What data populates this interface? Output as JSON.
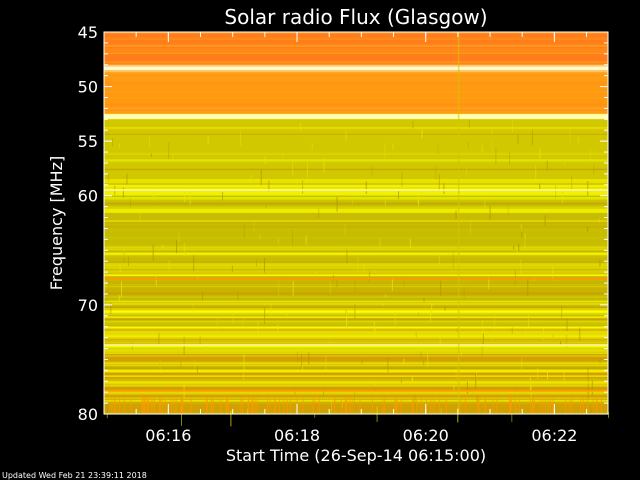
{
  "chart_data": {
    "type": "heatmap",
    "title": "Solar radio Flux (Glasgow)",
    "ylabel": "Frequency [MHz]",
    "xlabel": "Start Time (26-Sep-14 06:15:00)",
    "y_ticks": [
      45,
      50,
      55,
      60,
      70,
      80
    ],
    "y_tick_labels": [
      "45",
      "50",
      "55",
      "60",
      "70",
      "80"
    ],
    "ylim": [
      45,
      80
    ],
    "y_scale": "linear",
    "x_ticks": [
      "06:16",
      "06:18",
      "06:20",
      "06:22"
    ],
    "xlim": [
      "06:15:00",
      "06:22:50"
    ],
    "colormap": [
      "#c8a000",
      "#c8c800",
      "#e6e600",
      "#ffff00",
      "#ff9a00",
      "#ff7a1a",
      "#ffffa0",
      "#ffffff"
    ],
    "bands": [
      {
        "f_min": 45.0,
        "f_max": 48.0,
        "level": "high",
        "color": "#ff7d1a"
      },
      {
        "f_min": 48.0,
        "f_max": 48.7,
        "level": "saturated",
        "color": "#ffffb4"
      },
      {
        "f_min": 48.7,
        "f_max": 52.5,
        "level": "high",
        "color": "#ff9a10"
      },
      {
        "f_min": 52.5,
        "f_max": 53.0,
        "level": "saturated",
        "color": "#ffffa0"
      },
      {
        "f_min": 53.0,
        "f_max": 58.5,
        "level": "medium",
        "color": "#d2c800"
      },
      {
        "f_min": 58.5,
        "f_max": 60.0,
        "level": "medium-high",
        "color": "#f0f000"
      },
      {
        "f_min": 60.0,
        "f_max": 66.0,
        "level": "medium",
        "color": "#c8bc00"
      },
      {
        "f_min": 66.0,
        "f_max": 72.0,
        "level": "medium",
        "color": "#c8b400"
      },
      {
        "f_min": 72.0,
        "f_max": 74.5,
        "level": "medium-high",
        "color": "#e6dc00"
      },
      {
        "f_min": 74.5,
        "f_max": 80.0,
        "level": "medium",
        "color": "#d2a000"
      }
    ]
  },
  "footer": {
    "updated": "Updated Wed Feb 21 23:39:11 2018"
  }
}
